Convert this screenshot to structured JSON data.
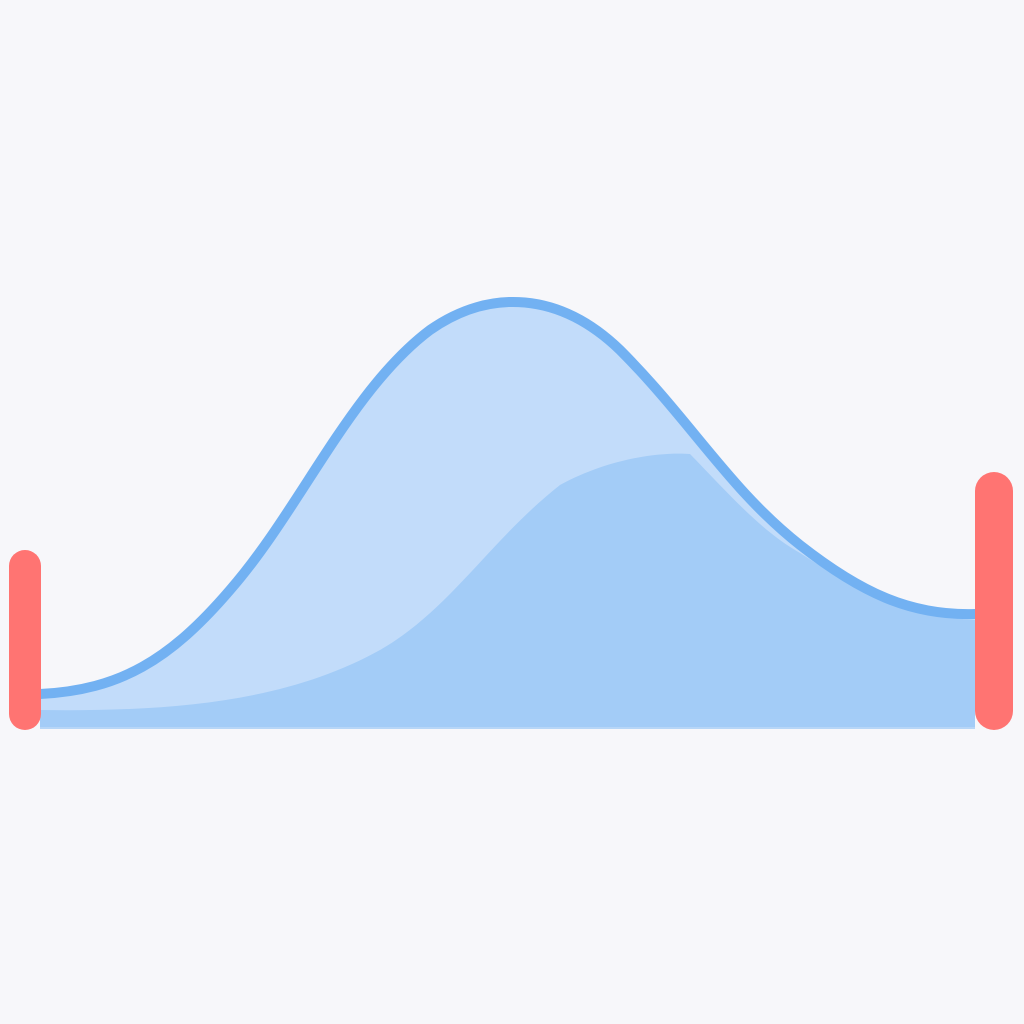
{
  "illustration": {
    "subject": "distribution-curve-with-boundary-markers",
    "colors": {
      "background": "#f7f7fa",
      "outer_fill": "#c2dcfa",
      "inner_fill": "#a3ccf7",
      "curve_stroke": "#72b1f2",
      "marker": "#ff7472"
    }
  }
}
